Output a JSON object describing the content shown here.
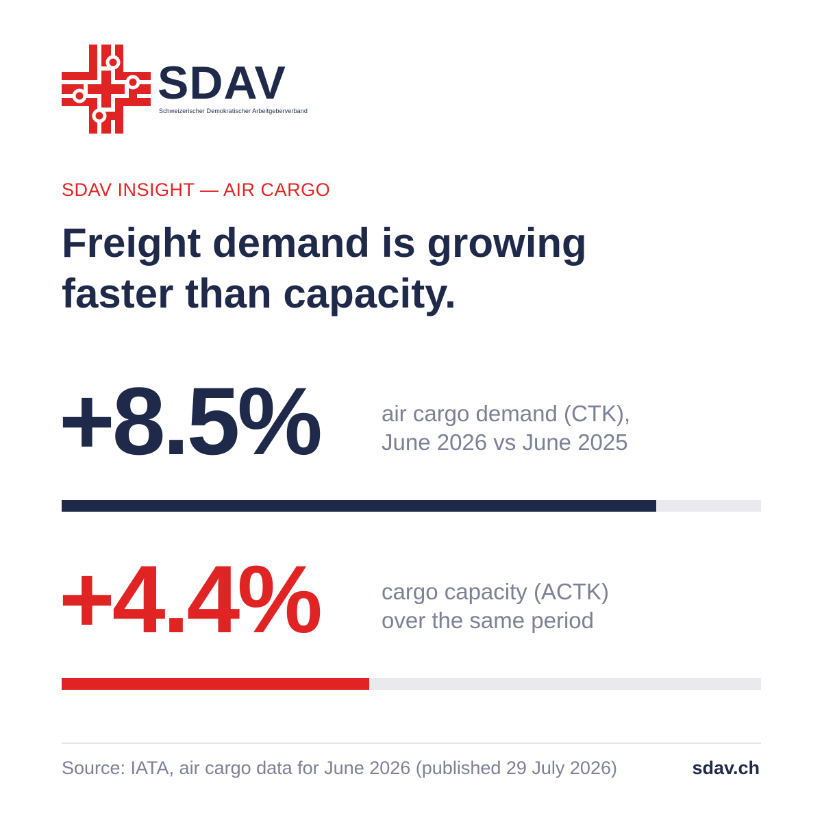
{
  "brand": {
    "name": "SDAV",
    "tagline": "Schweizerischer Demokratischer Arbeitgeberverband",
    "logo_icon": "swiss-cross-circuit-icon",
    "accent_color": "#e02424",
    "primary_color": "#1f2a4a"
  },
  "eyebrow": "SDAV INSIGHT — AIR CARGO",
  "headline": {
    "line1": "Freight demand is growing",
    "line2": "faster than capacity."
  },
  "stats": [
    {
      "value": "+8.5%",
      "desc_line1": "air cargo demand (CTK),",
      "desc_line2": "June 2026 vs June 2025",
      "progress": 0.85,
      "color": "#1f2a4a"
    },
    {
      "value": "+4.4%",
      "desc_line1": "cargo capacity (ACTK)",
      "desc_line2": "over the same period",
      "progress": 0.44,
      "color": "#e02424"
    }
  ],
  "footer": {
    "source": "Source: IATA, air cargo data for June 2026 (published 29 July 2026)",
    "site": "sdav.ch"
  }
}
